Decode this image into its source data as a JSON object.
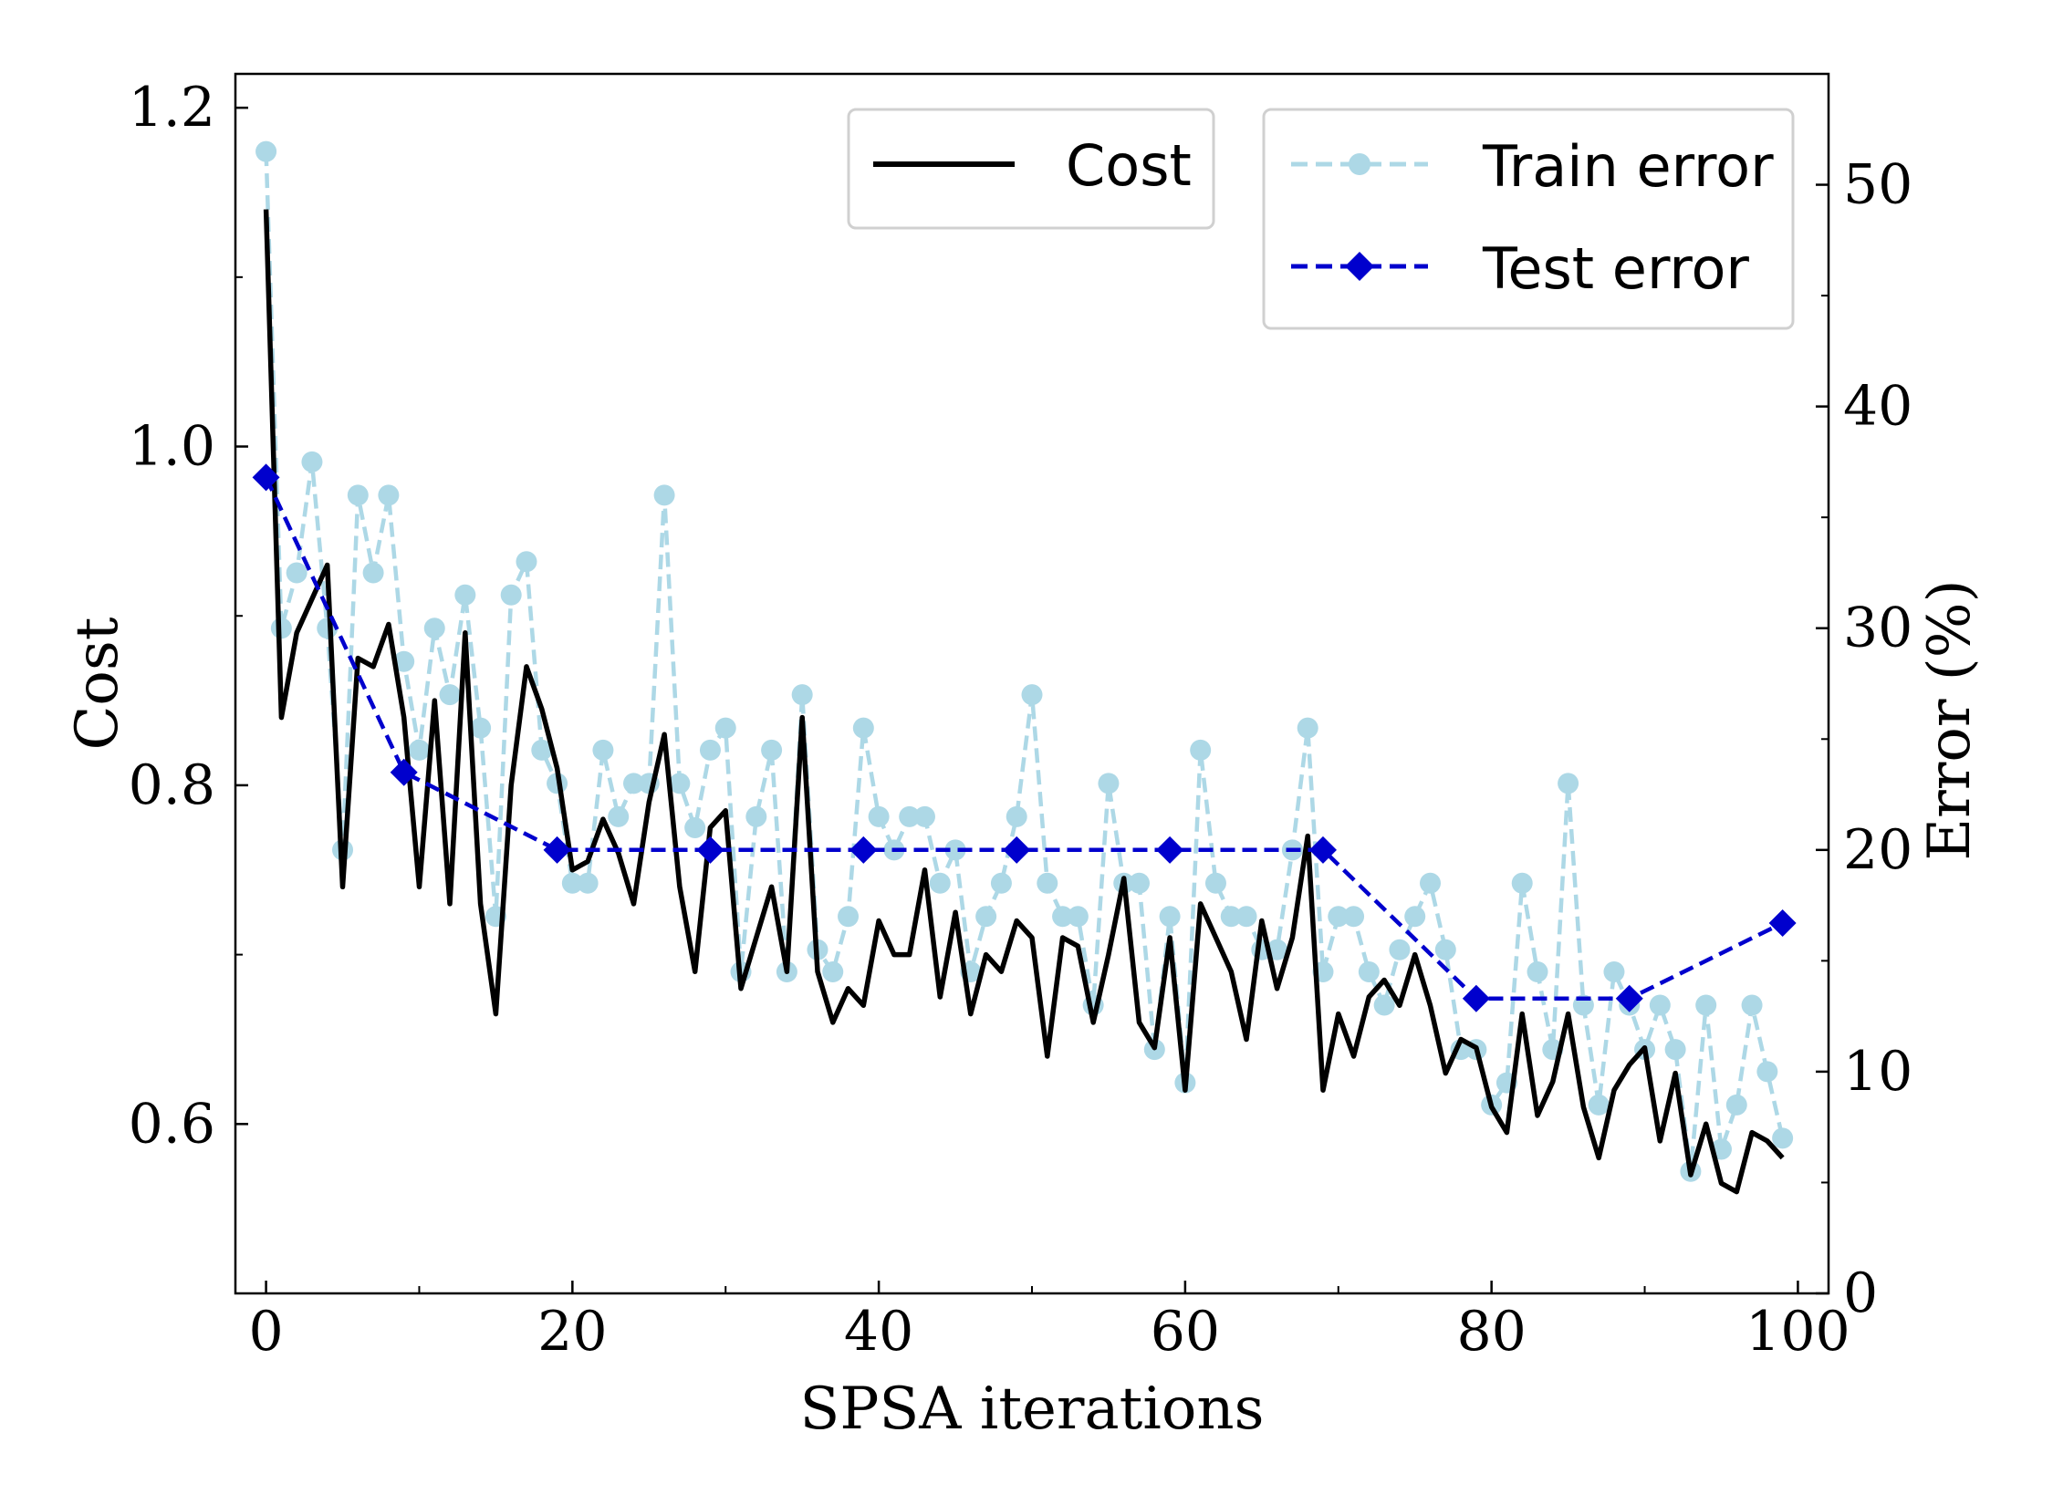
{
  "chart_data": {
    "type": "line",
    "xlabel": "SPSA iterations",
    "ylabel_left": "Cost",
    "ylabel_right": "Error (%)",
    "xlim": [
      -2,
      102
    ],
    "ylim_left": [
      0.5,
      1.22
    ],
    "ylim_right": [
      0,
      55
    ],
    "x_ticks": [
      0,
      20,
      40,
      60,
      80,
      100
    ],
    "x_tick_labels": [
      "0",
      "20",
      "40",
      "60",
      "80",
      "100"
    ],
    "y_left_ticks": [
      0.6,
      0.8,
      1.0,
      1.2
    ],
    "y_left_tick_labels": [
      "0.6",
      "0.8",
      "1.0",
      "1.2"
    ],
    "y_right_ticks": [
      0,
      10,
      20,
      30,
      40,
      50
    ],
    "y_right_tick_labels": [
      "0",
      "10",
      "20",
      "30",
      "40",
      "50"
    ],
    "legend_left": {
      "location": "top-center",
      "entries": [
        "Cost"
      ]
    },
    "legend_right": {
      "location": "top-right",
      "entries": [
        "Train error",
        "Test error"
      ]
    },
    "series": [
      {
        "name": "Cost",
        "axis": "left",
        "color": "#000000",
        "style": "solid",
        "x": [
          0,
          1,
          2,
          3,
          4,
          5,
          6,
          7,
          8,
          9,
          10,
          11,
          12,
          13,
          14,
          15,
          16,
          17,
          18,
          19,
          20,
          21,
          22,
          23,
          24,
          25,
          26,
          27,
          28,
          29,
          30,
          31,
          32,
          33,
          34,
          35,
          36,
          37,
          38,
          39,
          40,
          41,
          42,
          43,
          44,
          45,
          46,
          47,
          48,
          49,
          50,
          51,
          52,
          53,
          54,
          55,
          56,
          57,
          58,
          59,
          60,
          61,
          62,
          63,
          64,
          65,
          66,
          67,
          68,
          69,
          70,
          71,
          72,
          73,
          74,
          75,
          76,
          77,
          78,
          79,
          80,
          81,
          82,
          83,
          84,
          85,
          86,
          87,
          88,
          89,
          90,
          91,
          92,
          93,
          94,
          95,
          96,
          97,
          98,
          99
        ],
        "values": [
          1.14,
          0.84,
          0.89,
          0.91,
          0.93,
          0.74,
          0.875,
          0.87,
          0.895,
          0.84,
          0.74,
          0.85,
          0.73,
          0.89,
          0.73,
          0.665,
          0.8,
          0.87,
          0.845,
          0.81,
          0.75,
          0.755,
          0.78,
          0.76,
          0.73,
          0.79,
          0.83,
          0.74,
          0.69,
          0.775,
          0.785,
          0.68,
          0.71,
          0.74,
          0.69,
          0.84,
          0.69,
          0.66,
          0.68,
          0.67,
          0.72,
          0.7,
          0.7,
          0.75,
          0.675,
          0.725,
          0.665,
          0.7,
          0.69,
          0.72,
          0.71,
          0.64,
          0.71,
          0.705,
          0.66,
          0.7,
          0.745,
          0.66,
          0.645,
          0.71,
          0.62,
          0.73,
          0.71,
          0.69,
          0.65,
          0.72,
          0.68,
          0.71,
          0.77,
          0.62,
          0.665,
          0.64,
          0.675,
          0.685,
          0.67,
          0.7,
          0.67,
          0.63,
          0.65,
          0.645,
          0.61,
          0.595,
          0.665,
          0.605,
          0.625,
          0.665,
          0.61,
          0.58,
          0.62,
          0.635,
          0.645,
          0.59,
          0.63,
          0.57,
          0.6,
          0.565,
          0.56,
          0.595,
          0.59,
          0.58
        ]
      },
      {
        "name": "Train error",
        "axis": "right",
        "color": "#add8e6",
        "style": "dashed",
        "marker": "circle",
        "x": [
          0,
          1,
          2,
          3,
          4,
          5,
          6,
          7,
          8,
          9,
          10,
          11,
          12,
          13,
          14,
          15,
          16,
          17,
          18,
          19,
          20,
          21,
          22,
          23,
          24,
          25,
          26,
          27,
          28,
          29,
          30,
          31,
          32,
          33,
          34,
          35,
          36,
          37,
          38,
          39,
          40,
          41,
          42,
          43,
          44,
          45,
          46,
          47,
          48,
          49,
          50,
          51,
          52,
          53,
          54,
          55,
          56,
          57,
          58,
          59,
          60,
          61,
          62,
          63,
          64,
          65,
          66,
          67,
          68,
          69,
          70,
          71,
          72,
          73,
          74,
          75,
          76,
          77,
          78,
          79,
          80,
          81,
          82,
          83,
          84,
          85,
          86,
          87,
          88,
          89,
          90,
          91,
          92,
          93,
          94,
          95,
          96,
          97,
          98,
          99
        ],
        "values": [
          51.5,
          30,
          32.5,
          37.5,
          30,
          20,
          36,
          32.5,
          36,
          28.5,
          24.5,
          30,
          27,
          31.5,
          25.5,
          17,
          31.5,
          33,
          24.5,
          23,
          18.5,
          18.5,
          24.5,
          21.5,
          23,
          23,
          36,
          23,
          21,
          24.5,
          25.5,
          14.5,
          21.5,
          24.5,
          14.5,
          27,
          15.5,
          14.5,
          17,
          25.5,
          21.5,
          20,
          21.5,
          21.5,
          18.5,
          20,
          14.5,
          17,
          18.5,
          21.5,
          27,
          18.5,
          17,
          17,
          13,
          23,
          18.5,
          18.5,
          11,
          17,
          9.5,
          24.5,
          18.5,
          17,
          17,
          15.5,
          15.5,
          20,
          25.5,
          14.5,
          17,
          17,
          14.5,
          13,
          15.5,
          17,
          18.5,
          15.5,
          11,
          11,
          8.5,
          9.5,
          18.5,
          14.5,
          11,
          23,
          13,
          8.5,
          14.5,
          13,
          11,
          13,
          11,
          5.5,
          13,
          6.5,
          8.5,
          13,
          10,
          7
        ]
      },
      {
        "name": "Test error",
        "axis": "right",
        "color": "#0000cd",
        "style": "dashed",
        "marker": "diamond",
        "x": [
          0,
          9,
          19,
          29,
          39,
          49,
          59,
          69,
          79,
          89,
          99
        ],
        "values": [
          36.8,
          23.5,
          20,
          20,
          20,
          20,
          20,
          20,
          13.3,
          13.3,
          16.7
        ]
      }
    ]
  }
}
